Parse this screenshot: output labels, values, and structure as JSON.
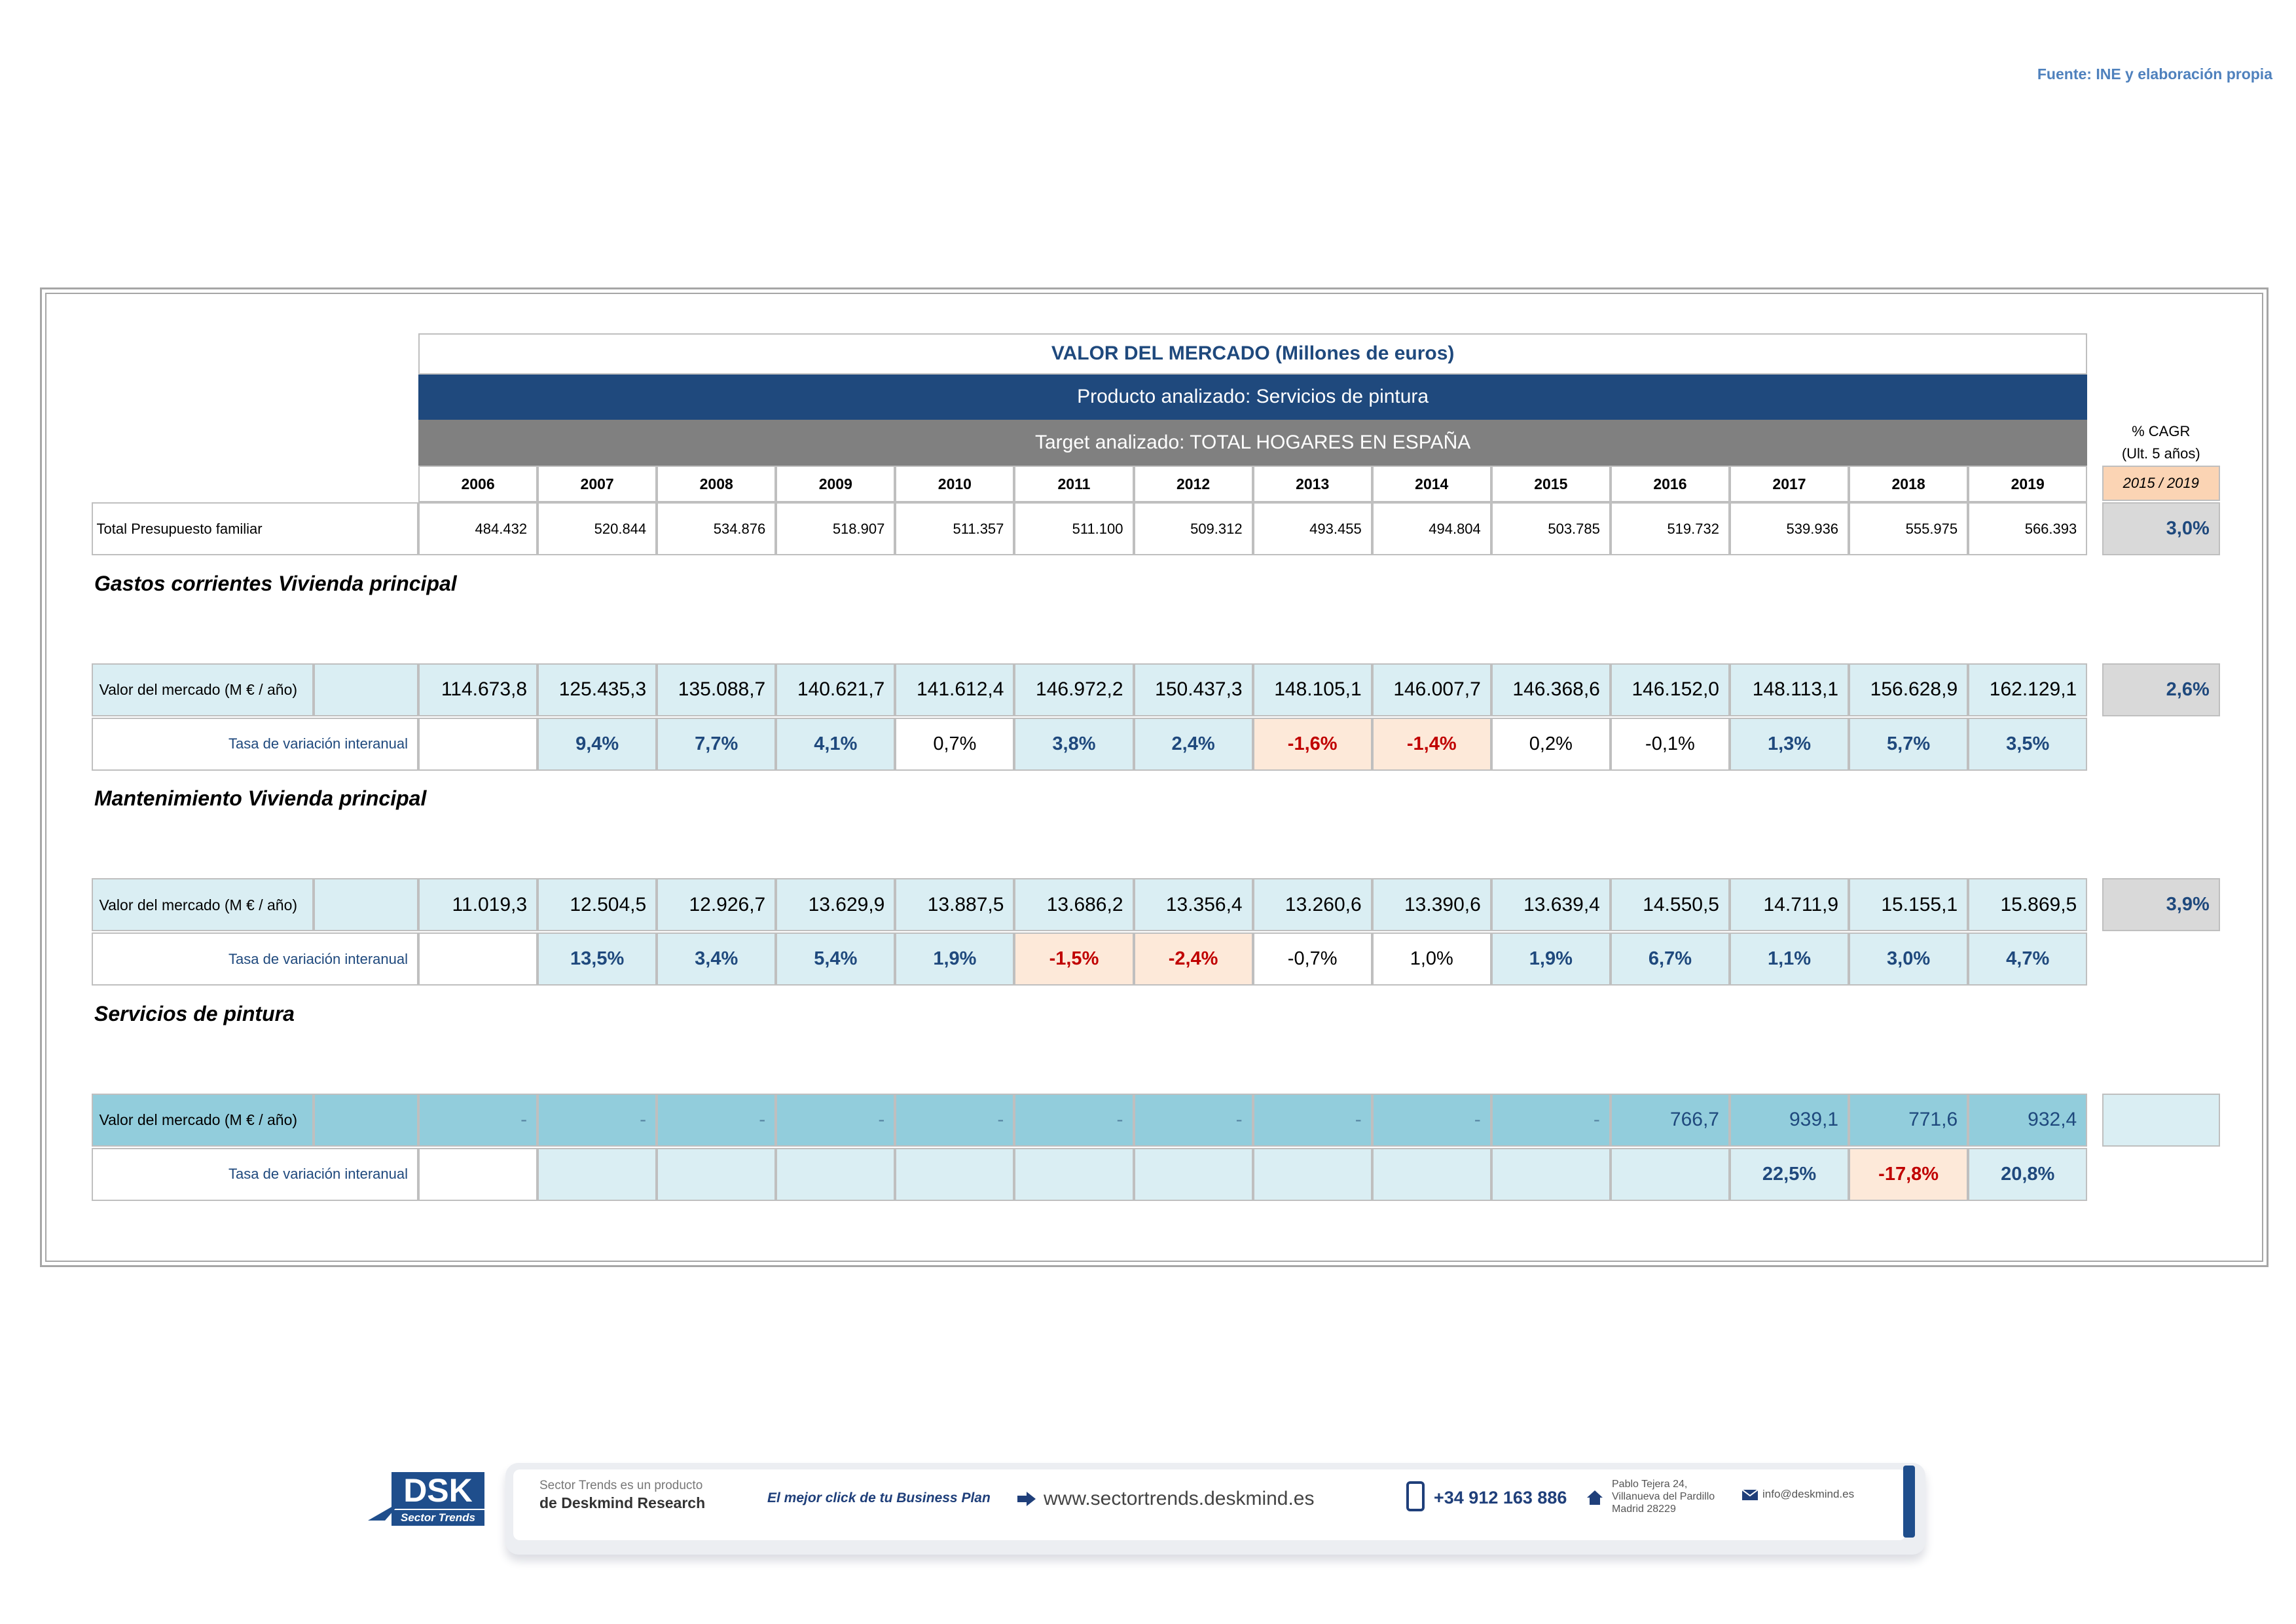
{
  "source": "Fuente: INE y elaboración propia",
  "table": {
    "title": "VALOR DEL MERCADO (Millones de euros)",
    "product": "Producto analizado: Servicios de pintura",
    "target": "Target analizado: TOTAL HOGARES EN ESPAÑA",
    "cagr_header": [
      "% CAGR",
      "(Ult. 5 años)"
    ],
    "cagr_period": "2015 / 2019",
    "years": [
      "2006",
      "2007",
      "2008",
      "2009",
      "2010",
      "2011",
      "2012",
      "2013",
      "2014",
      "2015",
      "2016",
      "2017",
      "2018",
      "2019"
    ],
    "total": {
      "label": "Total Presupuesto familiar",
      "values": [
        "484.432",
        "520.844",
        "534.876",
        "518.907",
        "511.357",
        "511.100",
        "509.312",
        "493.455",
        "494.804",
        "503.785",
        "519.732",
        "539.936",
        "555.975",
        "566.393"
      ],
      "cagr": "3,0%"
    },
    "sections": [
      {
        "title": "Gastos corrientes Vivienda principal",
        "value_label": "Valor del mercado (M € / año)",
        "values": [
          "114.673,8",
          "125.435,3",
          "135.088,7",
          "140.621,7",
          "141.612,4",
          "146.972,2",
          "150.437,3",
          "148.105,1",
          "146.007,7",
          "146.368,6",
          "146.152,0",
          "148.113,1",
          "156.628,9",
          "162.129,1"
        ],
        "cagr": "2,6%",
        "rate_label": "Tasa de variación interanual",
        "rates": [
          null,
          "9,4%",
          "7,7%",
          "4,1%",
          "0,7%",
          "3,8%",
          "2,4%",
          "-1,6%",
          "-1,4%",
          "0,2%",
          "-0,1%",
          "1,3%",
          "5,7%",
          "3,5%"
        ]
      },
      {
        "title": "Mantenimiento Vivienda principal",
        "value_label": "Valor del mercado (M € / año)",
        "values": [
          "11.019,3",
          "12.504,5",
          "12.926,7",
          "13.629,9",
          "13.887,5",
          "13.686,2",
          "13.356,4",
          "13.260,6",
          "13.390,6",
          "13.639,4",
          "14.550,5",
          "14.711,9",
          "15.155,1",
          "15.869,5"
        ],
        "cagr": "3,9%",
        "rate_label": "Tasa de variación interanual",
        "rates": [
          null,
          "13,5%",
          "3,4%",
          "5,4%",
          "1,9%",
          "-1,5%",
          "-2,4%",
          "-0,7%",
          "1,0%",
          "1,9%",
          "6,7%",
          "1,1%",
          "3,0%",
          "4,7%"
        ]
      },
      {
        "title": "Servicios de pintura",
        "value_label": "Valor del mercado (M € / año)",
        "values": [
          "-",
          "-",
          "-",
          "-",
          "-",
          "-",
          "-",
          "-",
          "-",
          "-",
          "766,7",
          "939,1",
          "771,6",
          "932,4"
        ],
        "rate_label": "Tasa de variación interanual",
        "rates": [
          null,
          null,
          null,
          null,
          null,
          null,
          null,
          null,
          null,
          null,
          null,
          "22,5%",
          "-17,8%",
          "20,8%"
        ]
      }
    ]
  },
  "footer": {
    "logo": "DSK",
    "logo_sub": "Sector Trends",
    "product_line": "Sector Trends es un producto",
    "product_by": "de Deskmind Research",
    "slogan": "El mejor click de tu Business Plan",
    "web": "www.sectortrends.deskmind.es",
    "phone": "+34 912 163 886",
    "address": [
      "Pablo Tejera 24,",
      "Villanueva del Pardillo",
      "Madrid 28229"
    ],
    "email": "info@deskmind.es"
  }
}
